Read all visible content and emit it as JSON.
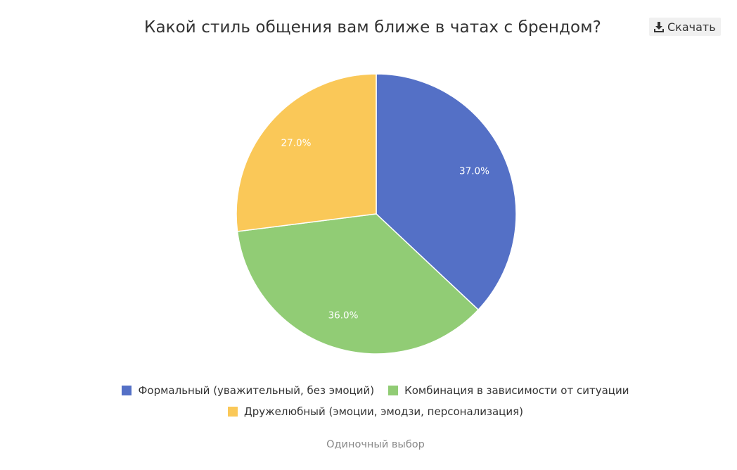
{
  "toolbar": {
    "download_label": "Скачать",
    "download_icon": "download-icon"
  },
  "footer": {
    "note": "Одиночный выбор"
  },
  "chart_data": {
    "type": "pie",
    "title": "Какой стиль общения вам ближе в чатах с брендом?",
    "legend_position": "bottom",
    "slices": [
      {
        "label": "Формальный (уважительный, без эмоций)",
        "value": 37.0,
        "value_label": "37.0%",
        "color": "#5470c6"
      },
      {
        "label": "Комбинация в зависимости от ситуации",
        "value": 36.0,
        "value_label": "36.0%",
        "color": "#91cc75"
      },
      {
        "label": "Дружелюбный (эмоции, эмодзи, персонализация)",
        "value": 27.0,
        "value_label": "27.0%",
        "color": "#fac858"
      }
    ]
  }
}
